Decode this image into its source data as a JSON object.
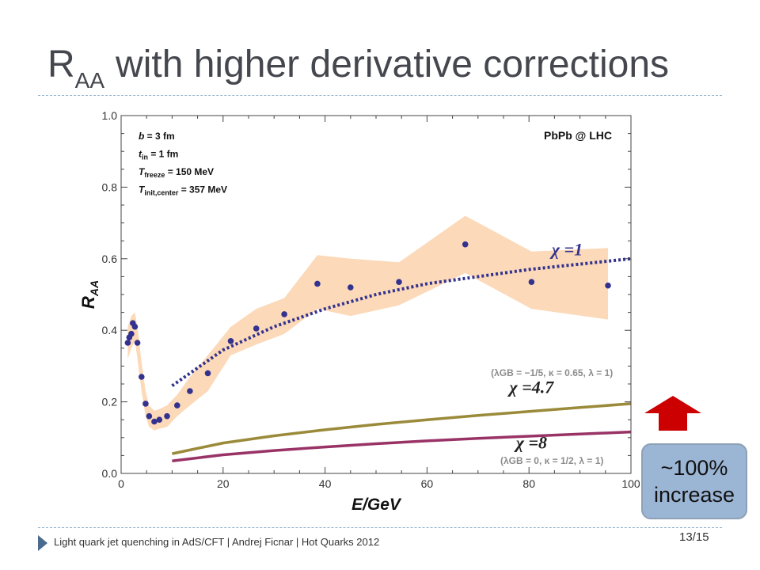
{
  "slide": {
    "title_main": "R",
    "title_sub": "AA",
    "title_rest": "with higher derivative corrections",
    "footer": "Light quark jet quenching in AdS/CFT  |  Andrej Ficnar  |  Hot Quarks 2012",
    "page_number": "13/15",
    "callout_line1": "~100%",
    "callout_line2": "increase",
    "arrow_color": "#cc0000"
  },
  "chart_data": {
    "type": "scatter",
    "xlabel": "E/GeV",
    "ylabel": "R",
    "ylabel_sub": "AA",
    "xlim": [
      0,
      100
    ],
    "ylim": [
      0,
      1.0
    ],
    "xticks": [
      0,
      20,
      40,
      60,
      80,
      100
    ],
    "yticks": [
      0.0,
      0.2,
      0.4,
      0.6,
      0.8,
      1.0
    ],
    "xtick_labels": [
      "0",
      "20",
      "40",
      "60",
      "80",
      "100"
    ],
    "ytick_labels": [
      "0.0",
      "0.2",
      "0.4",
      "0.6",
      "0.8",
      "1.0"
    ],
    "grid": false,
    "parameters": [
      {
        "lead": "b",
        "sub": "",
        "value": " = 3 fm"
      },
      {
        "lead": "t",
        "sub": "in",
        "value": " = 1 fm"
      },
      {
        "lead": "T",
        "sub": "freeze",
        "value": " = 150 MeV"
      },
      {
        "lead": "T",
        "sub": "init,center",
        "value": " = 357 MeV"
      }
    ],
    "system_label": "PbPb @ LHC",
    "data_points": {
      "color": "#33338f",
      "x": [
        1.3,
        1.6,
        2.0,
        2.3,
        2.7,
        3.2,
        4.0,
        4.8,
        5.5,
        6.5,
        7.5,
        9.0,
        11.0,
        13.5,
        17.0,
        21.5,
        26.5,
        32.0,
        38.5,
        45.0,
        54.5,
        67.5,
        80.5,
        95.5
      ],
      "y": [
        0.365,
        0.38,
        0.39,
        0.42,
        0.41,
        0.365,
        0.27,
        0.195,
        0.16,
        0.145,
        0.15,
        0.16,
        0.19,
        0.23,
        0.28,
        0.37,
        0.405,
        0.445,
        0.53,
        0.52,
        0.535,
        0.64,
        0.535,
        0.525
      ]
    },
    "uncertainty_band": {
      "color": "#fcd9b8",
      "x": [
        1.3,
        2.0,
        2.7,
        3.2,
        4.0,
        4.8,
        5.5,
        6.5,
        7.5,
        9.0,
        11.0,
        13.5,
        17.0,
        21.5,
        26.5,
        32.0,
        38.5,
        45.0,
        54.5,
        67.5,
        80.5,
        95.5
      ],
      "upper": [
        0.41,
        0.44,
        0.45,
        0.41,
        0.31,
        0.23,
        0.19,
        0.175,
        0.18,
        0.19,
        0.22,
        0.27,
        0.33,
        0.41,
        0.46,
        0.49,
        0.61,
        0.6,
        0.59,
        0.72,
        0.62,
        0.63
      ],
      "lower": [
        0.32,
        0.35,
        0.37,
        0.32,
        0.23,
        0.16,
        0.13,
        0.12,
        0.125,
        0.13,
        0.16,
        0.19,
        0.23,
        0.33,
        0.36,
        0.39,
        0.46,
        0.44,
        0.47,
        0.56,
        0.46,
        0.43
      ]
    },
    "curves": [
      {
        "name": "χ=1",
        "color": "#33338f",
        "style": "dotted",
        "x": [
          10,
          20,
          30,
          40,
          50,
          60,
          70,
          80,
          90,
          100
        ],
        "y": [
          0.245,
          0.345,
          0.41,
          0.46,
          0.5,
          0.53,
          0.55,
          0.57,
          0.585,
          0.6
        ]
      },
      {
        "name": "χ=4.7",
        "color": "#9a8a3a",
        "style": "solid",
        "x": [
          10,
          20,
          30,
          40,
          50,
          60,
          70,
          80,
          90,
          100
        ],
        "y": [
          0.055,
          0.085,
          0.105,
          0.122,
          0.137,
          0.15,
          0.162,
          0.173,
          0.184,
          0.195
        ]
      },
      {
        "name": "χ=8",
        "color": "#993366",
        "style": "solid",
        "x": [
          10,
          20,
          30,
          40,
          50,
          60,
          70,
          80,
          90,
          100
        ],
        "y": [
          0.035,
          0.052,
          0.064,
          0.074,
          0.083,
          0.091,
          0.098,
          0.104,
          0.11,
          0.116
        ]
      }
    ],
    "curve_labels": [
      {
        "name": "chi1-label",
        "text": "χ =1",
        "x": 87.5,
        "y": 0.61,
        "color": "#33338f"
      },
      {
        "name": "chi47-label",
        "text": "χ =4.7",
        "x": 80.5,
        "y": 0.225,
        "color": "#222222"
      },
      {
        "name": "chi8-label",
        "text": "χ =8",
        "x": 80.5,
        "y": 0.07,
        "color": "#222222"
      }
    ],
    "annotations": [
      {
        "name": "gb-params-upper",
        "text": "(λGB = −1/5, κ = 0.65, λ = 1)",
        "x": 84.5,
        "y": 0.272
      },
      {
        "name": "gb-params-lower",
        "text": "(λGB = 0, κ = 1/2, λ = 1)",
        "x": 84.5,
        "y": 0.027
      }
    ]
  }
}
